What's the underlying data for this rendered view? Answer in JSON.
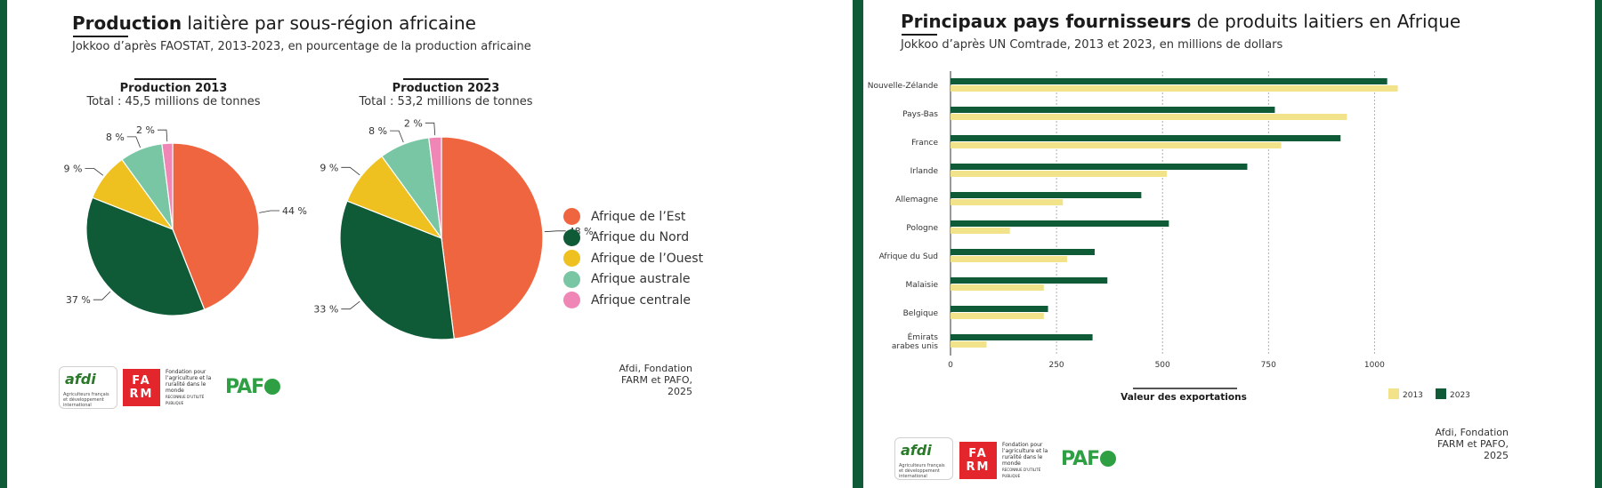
{
  "left": {
    "title_bold": "Production",
    "title_rest": " laitière par sous-région africaine",
    "subtitle": "Jokkoo d’après FAOSTAT, 2013-2023, en pourcentage de la production africaine",
    "source_lines": [
      "Afdi, Fondation",
      "FARM et PAFO,",
      "2025"
    ]
  },
  "right": {
    "title_bold": "Principaux pays fournisseurs",
    "title_rest": " de produits laitiers en Afrique",
    "subtitle": "Jokkoo d’après UN Comtrade, 2013 et 2023, en millions de dollars",
    "source_lines": [
      "Afdi, Fondation",
      "FARM et PAFO,",
      "2025"
    ]
  },
  "logos": {
    "afdi": "afdi",
    "afdi_tagline": "Agriculteurs français et développement international",
    "farm": [
      "FA",
      "RM"
    ],
    "farm_text": "Fondation pour l’agriculture et la ruralité dans le monde",
    "farm_subtext": "RECONNUE D’UTILITÉ PUBLIQUE",
    "pafo": "PAF"
  },
  "colors": {
    "est": "#ef6540",
    "nord": "#0f5a37",
    "ouest": "#eec120",
    "australe": "#78c6a3",
    "centrale": "#ef86b5",
    "y2013": "#f2e28a",
    "y2023": "#0f5a37"
  },
  "chart_data": [
    {
      "type": "pie",
      "title": "Production 2013",
      "subtitle": "Total : 45,5 millions de tonnes",
      "categories": [
        "Afrique de l’Est",
        "Afrique du Nord",
        "Afrique de l’Ouest",
        "Afrique australe",
        "Afrique centrale"
      ],
      "values": [
        44,
        37,
        9,
        8,
        2
      ],
      "value_labels": [
        "44 %",
        "37 %",
        "9 %",
        "8 %",
        "2 %"
      ],
      "legend_position": "right"
    },
    {
      "type": "pie",
      "title": "Production 2023",
      "subtitle": "Total : 53,2 millions de tonnes",
      "categories": [
        "Afrique de l’Est",
        "Afrique du Nord",
        "Afrique de l’Ouest",
        "Afrique australe",
        "Afrique centrale"
      ],
      "values": [
        48,
        33,
        9,
        8,
        2
      ],
      "value_labels": [
        "48 %",
        "33 %",
        "9 %",
        "8 %",
        "2 %"
      ],
      "legend_position": "right"
    },
    {
      "type": "bar",
      "orientation": "horizontal",
      "categories": [
        "Nouvelle-Zélande",
        "Pays-Bas",
        "France",
        "Irlande",
        "Allemagne",
        "Pologne",
        "Afrique du Sud",
        "Malaisie",
        "Belgique",
        "Émirats arabes unis"
      ],
      "series": [
        {
          "name": "2013",
          "values": [
            1055,
            935,
            780,
            510,
            265,
            140,
            275,
            220,
            220,
            85
          ]
        },
        {
          "name": "2023",
          "values": [
            1030,
            765,
            920,
            700,
            450,
            515,
            340,
            370,
            230,
            335
          ]
        }
      ],
      "xlabel": "Valeur des exportations",
      "xlim": [
        0,
        1100
      ],
      "xticks": [
        0,
        250,
        500,
        750,
        1000
      ],
      "xtick_labels": [
        "0",
        "250",
        "500",
        "750",
        "1000"
      ],
      "grid": "vertical dashed",
      "legend_position": "bottom-right"
    }
  ]
}
